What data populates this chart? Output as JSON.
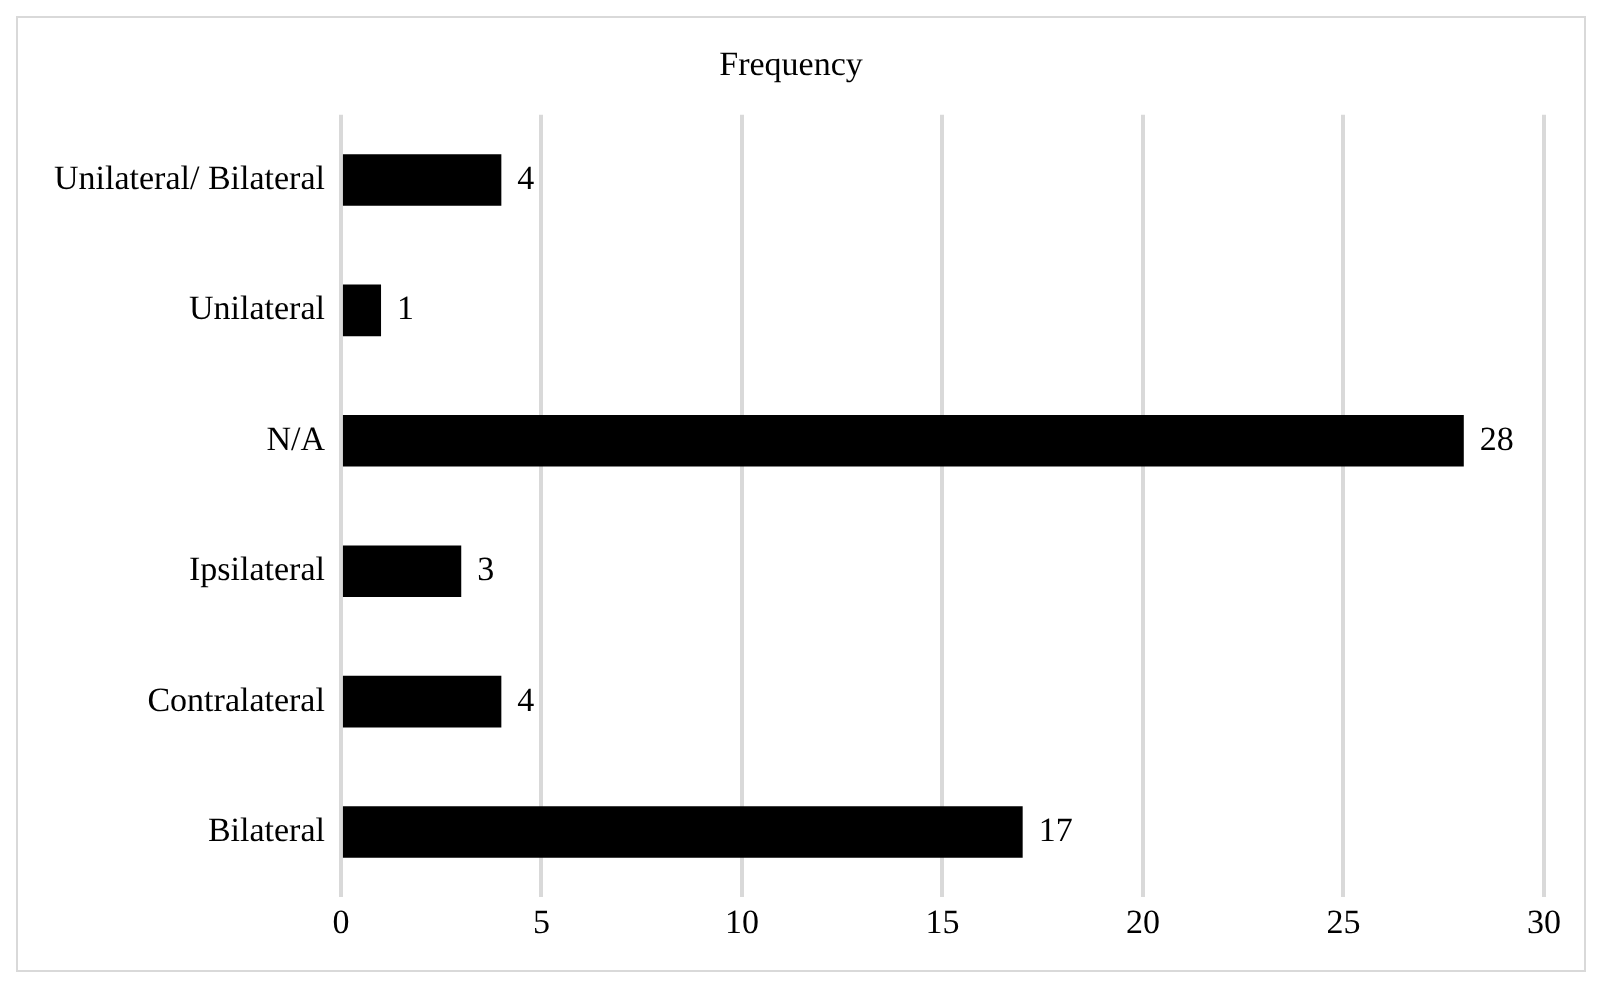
{
  "chart_data": {
    "type": "bar",
    "orientation": "horizontal",
    "title": "Frequency",
    "categories": [
      "Unilateral/ Bilateral",
      "Unilateral",
      "N/A",
      "Ipsilateral",
      "Contralateral",
      "Bilateral"
    ],
    "values": [
      4,
      1,
      28,
      3,
      4,
      17
    ],
    "color": "#000000",
    "xlim": [
      0,
      30
    ],
    "xticks": [
      0,
      5,
      10,
      15,
      20,
      25,
      30
    ],
    "grid": "x",
    "data_labels": true,
    "legend": false
  }
}
